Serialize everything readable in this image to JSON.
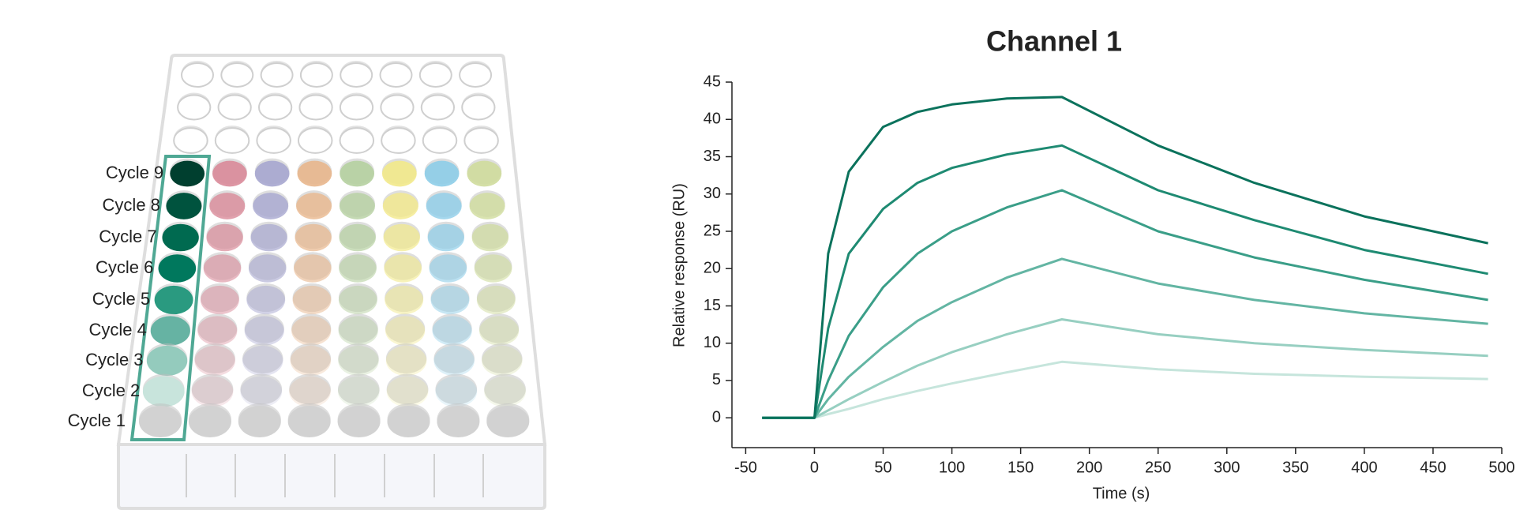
{
  "plate": {
    "rows": [
      "Cycle 9",
      "Cycle 8",
      "Cycle 7",
      "Cycle 6",
      "Cycle 5",
      "Cycle 4",
      "Cycle 3",
      "Cycle 2",
      "Cycle 1"
    ]
  },
  "chart_data": {
    "type": "line",
    "title": "Channel 1",
    "x_label": "Time (s)",
    "y_label": "Relative response (RU)",
    "x": [
      -38,
      0,
      10,
      25,
      50,
      75,
      100,
      140,
      180,
      250,
      320,
      400,
      490
    ],
    "series": [
      {
        "color": "#0b725c",
        "values": [
          0,
          0,
          22,
          33,
          39,
          41,
          42,
          42.8,
          43,
          36.5,
          31.5,
          27,
          23.4
        ]
      },
      {
        "color": "#1e8a72",
        "values": [
          0,
          0,
          12,
          22,
          28,
          31.5,
          33.5,
          35.3,
          36.5,
          30.5,
          26.5,
          22.5,
          19.3
        ]
      },
      {
        "color": "#3a9e88",
        "values": [
          0,
          0,
          5,
          11,
          17.5,
          22,
          25,
          28.2,
          30.5,
          25,
          21.5,
          18.5,
          15.8
        ]
      },
      {
        "color": "#63b5a3",
        "values": [
          0,
          0,
          2.5,
          5.5,
          9.5,
          13,
          15.5,
          18.8,
          21.3,
          18,
          15.8,
          14,
          12.6
        ]
      },
      {
        "color": "#97cfc1",
        "values": [
          0,
          0,
          1,
          2.5,
          4.8,
          7,
          8.8,
          11.2,
          13.2,
          11.2,
          10,
          9.1,
          8.3
        ]
      },
      {
        "color": "#c6e5dc",
        "values": [
          0,
          0,
          0.5,
          1.2,
          2.5,
          3.6,
          4.6,
          6.1,
          7.5,
          6.5,
          5.9,
          5.5,
          5.2
        ]
      }
    ],
    "xlim": [
      -60,
      500
    ],
    "ylim": [
      -4,
      45
    ],
    "xticks": [
      -50,
      0,
      50,
      100,
      150,
      200,
      250,
      300,
      350,
      400,
      450,
      500
    ],
    "yticks": [
      0,
      5,
      10,
      15,
      20,
      25,
      30,
      35,
      40,
      45
    ]
  }
}
